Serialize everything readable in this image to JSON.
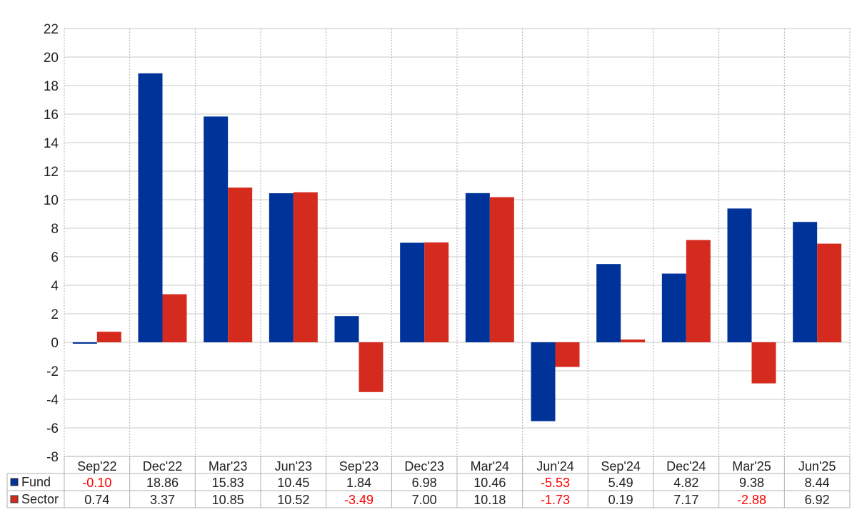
{
  "chart_data": {
    "type": "bar",
    "categories": [
      "Sep'22",
      "Dec'22",
      "Mar'23",
      "Jun'23",
      "Sep'23",
      "Dec'23",
      "Mar'24",
      "Jun'24",
      "Sep'24",
      "Dec'24",
      "Mar'25",
      "Jun'25"
    ],
    "series": [
      {
        "name": "Fund",
        "color": "#003399",
        "values": [
          -0.1,
          18.86,
          15.83,
          10.45,
          1.84,
          6.98,
          10.46,
          -5.53,
          5.49,
          4.82,
          9.38,
          8.44
        ],
        "labels": [
          "-0.10",
          "18.86",
          "15.83",
          "10.45",
          "1.84",
          "6.98",
          "10.46",
          "-5.53",
          "5.49",
          "4.82",
          "9.38",
          "8.44"
        ]
      },
      {
        "name": "Sector",
        "color": "#d52b1e",
        "values": [
          0.74,
          3.37,
          10.85,
          10.52,
          -3.49,
          7.0,
          10.18,
          -1.73,
          0.19,
          7.17,
          -2.88,
          6.92
        ],
        "labels": [
          "0.74",
          "3.37",
          "10.85",
          "10.52",
          "-3.49",
          "7.00",
          "10.18",
          "-1.73",
          "0.19",
          "7.17",
          "-2.88",
          "6.92"
        ]
      }
    ],
    "ylim": [
      -8,
      22
    ],
    "yticks": [
      "-8",
      "-6",
      "-4",
      "-2",
      "0",
      "2",
      "4",
      "6",
      "8",
      "10",
      "12",
      "14",
      "16",
      "18",
      "20",
      "22"
    ],
    "grid": true,
    "legend": "data table below chart",
    "negative_value_color": "#ff0000",
    "title": "",
    "xlabel": "",
    "ylabel": ""
  }
}
